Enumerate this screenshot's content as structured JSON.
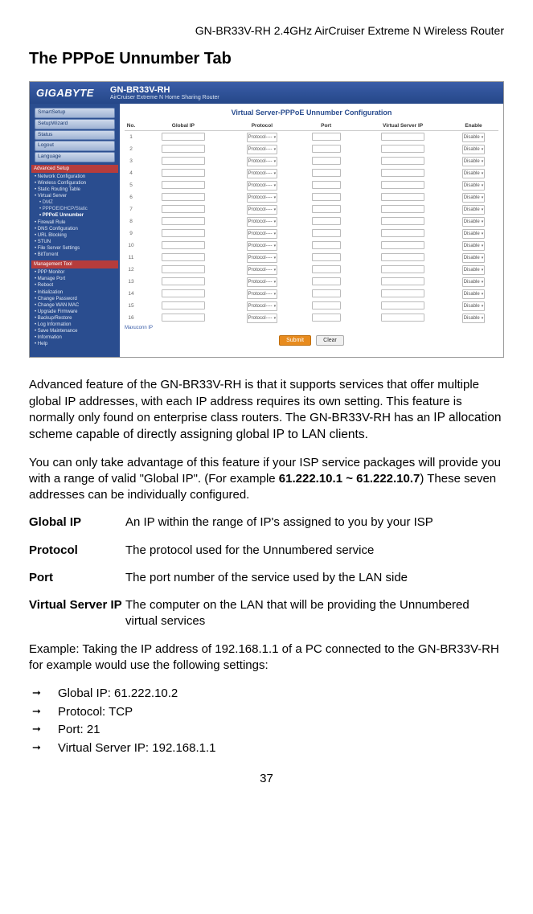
{
  "doc_header": "GN-BR33V-RH 2.4GHz AirCruiser Extreme N Wireless Router",
  "section_title": "The PPPoE Unnumber Tab",
  "screenshot": {
    "logo": "GIGABYTE",
    "model": "GN-BR33V-RH",
    "tagline": "AirCruiser Extreme N Home Sharing Router",
    "nav_buttons": [
      "SmartSetup",
      "SetupWizard",
      "Status",
      "Logout",
      "Language"
    ],
    "side_section1": "Advanced Setup",
    "side_items1": [
      "Network Configuration",
      "Wireless Configuration",
      "Static Routing Table",
      "Virtual Server"
    ],
    "side_subs1": [
      "DMZ",
      "PPPOE/DHCP/Static",
      "PPPoE Unnumber"
    ],
    "side_items1b": [
      "Firewall Rule",
      "DNS Configuration",
      "URL Blocking",
      "STUN",
      "File Server Settings",
      "BitTorrent"
    ],
    "side_section2": "Management Tool",
    "side_items2": [
      "PPP Monitor",
      "Manage Port",
      "Reboot",
      "Initialization",
      "Change Password",
      "Change WAN MAC",
      "Upgrade Firmware",
      "Backup/Restore",
      "Log Information",
      "Save Maintenance",
      "Information",
      "Help"
    ],
    "panel_title": "Virtual Server-PPPoE Unnumber Configuration",
    "columns": [
      "No.",
      "Global IP",
      "Protocol",
      "Port",
      "Virtual Server IP",
      "Enable"
    ],
    "protocol_value": "Protocol----",
    "enable_value": "Disable",
    "row_count": 16,
    "max_label": "Maxuconn IP",
    "submit": "Submit",
    "clear": "Clear"
  },
  "para1_a": "Advanced feature of the GN-BR33V-RH is that it supports services that offer multiple global IP addresses, with each IP address requires its own setting. This feature is normally only found on enterprise class routers. The GN-BR33V-RH has an ",
  "para1_b": "IP allocation scheme capable of directly assigning global IP to LAN clients.",
  "para2_a": "You can only take advantage of this feature if your ISP service packages will provide you with a range of valid \"Global IP\". (For example ",
  "para2_b": "61.222.10.1 ~ 61.222.10.7",
  "para2_c": ") These seven addresses can be individually configured.",
  "defs": [
    {
      "term": "Global IP",
      "desc": "An IP within the range of IP's assigned to you by your ISP"
    },
    {
      "term": "Protocol",
      "desc": "The protocol used for the Unnumbered service"
    },
    {
      "term": "Port",
      "desc": "The port number of the service used by the LAN side"
    },
    {
      "term": "Virtual Server IP",
      "desc": "The computer on the LAN that will be providing the Unnumbered virtual services"
    }
  ],
  "example_intro": "Example: Taking the IP address of 192.168.1.1 of a PC connected to the GN-BR33V-RH for example would use the following settings:",
  "bullets": [
    "Global IP: 61.222.10.2",
    "Protocol: TCP",
    "Port: 21",
    "Virtual Server IP: 192.168.1.1"
  ],
  "page_num": "37"
}
